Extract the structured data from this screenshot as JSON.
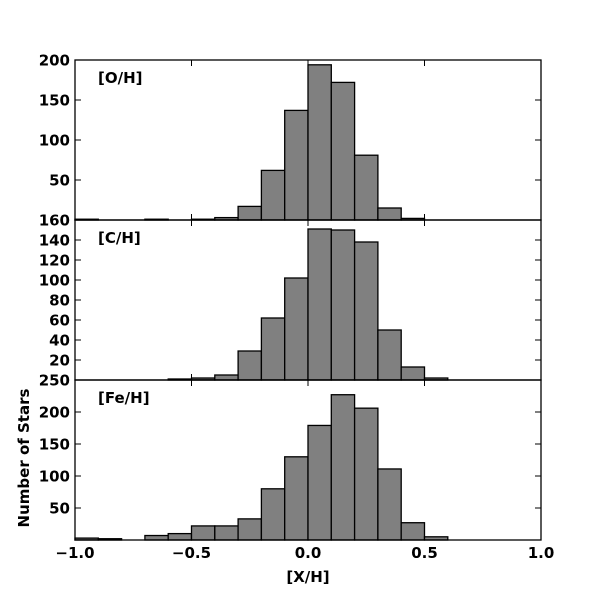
{
  "chart_data": {
    "type": "bar",
    "layout": "three stacked histograms sharing x-axis",
    "xlabel": "[X/H]",
    "ylabel": "Number of Stars",
    "xlim": [
      -1.0,
      1.0
    ],
    "x_ticks": [
      -1.0,
      -0.5,
      0.0,
      0.5,
      1.0
    ],
    "x_tick_labels": [
      "−1.0",
      "−0.5",
      "0.0",
      "0.5",
      "1.0"
    ],
    "bar_color": "#808080",
    "edge_color": "#000000",
    "bin_width": 0.1,
    "panels": [
      {
        "label": "[O/H]",
        "ylim": [
          0,
          200
        ],
        "y_ticks": [
          50,
          100,
          150,
          200
        ],
        "y_tick_labels": [
          "50",
          "100",
          "150",
          "200"
        ],
        "bins": [
          {
            "x0": -1.0,
            "x1": -0.9,
            "value": 1
          },
          {
            "x0": -0.9,
            "x1": -0.8,
            "value": 0
          },
          {
            "x0": -0.8,
            "x1": -0.7,
            "value": 0
          },
          {
            "x0": -0.7,
            "x1": -0.6,
            "value": 1
          },
          {
            "x0": -0.6,
            "x1": -0.5,
            "value": 0
          },
          {
            "x0": -0.5,
            "x1": -0.4,
            "value": 1
          },
          {
            "x0": -0.4,
            "x1": -0.3,
            "value": 3
          },
          {
            "x0": -0.3,
            "x1": -0.2,
            "value": 17
          },
          {
            "x0": -0.2,
            "x1": -0.1,
            "value": 62
          },
          {
            "x0": -0.1,
            "x1": 0.0,
            "value": 137
          },
          {
            "x0": 0.0,
            "x1": 0.1,
            "value": 194
          },
          {
            "x0": 0.1,
            "x1": 0.2,
            "value": 172
          },
          {
            "x0": 0.2,
            "x1": 0.3,
            "value": 81
          },
          {
            "x0": 0.3,
            "x1": 0.4,
            "value": 15
          },
          {
            "x0": 0.4,
            "x1": 0.5,
            "value": 2
          }
        ]
      },
      {
        "label": "[C/H]",
        "ylim": [
          0,
          160
        ],
        "y_ticks": [
          20,
          40,
          60,
          80,
          100,
          120,
          140,
          160
        ],
        "y_tick_labels": [
          "20",
          "40",
          "60",
          "80",
          "100",
          "120",
          "140",
          "160"
        ],
        "bins": [
          {
            "x0": -0.6,
            "x1": -0.5,
            "value": 1
          },
          {
            "x0": -0.5,
            "x1": -0.4,
            "value": 2
          },
          {
            "x0": -0.4,
            "x1": -0.3,
            "value": 5
          },
          {
            "x0": -0.3,
            "x1": -0.2,
            "value": 29
          },
          {
            "x0": -0.2,
            "x1": -0.1,
            "value": 62
          },
          {
            "x0": -0.1,
            "x1": 0.0,
            "value": 102
          },
          {
            "x0": 0.0,
            "x1": 0.1,
            "value": 151
          },
          {
            "x0": 0.1,
            "x1": 0.2,
            "value": 150
          },
          {
            "x0": 0.2,
            "x1": 0.3,
            "value": 138
          },
          {
            "x0": 0.3,
            "x1": 0.4,
            "value": 50
          },
          {
            "x0": 0.4,
            "x1": 0.5,
            "value": 13
          },
          {
            "x0": 0.5,
            "x1": 0.6,
            "value": 2
          }
        ]
      },
      {
        "label": "[Fe/H]",
        "ylim": [
          0,
          250
        ],
        "y_ticks": [
          50,
          100,
          150,
          200,
          250
        ],
        "y_tick_labels": [
          "50",
          "100",
          "150",
          "200",
          "250"
        ],
        "bins": [
          {
            "x0": -1.0,
            "x1": -0.9,
            "value": 3
          },
          {
            "x0": -0.9,
            "x1": -0.8,
            "value": 2
          },
          {
            "x0": -0.8,
            "x1": -0.7,
            "value": 0
          },
          {
            "x0": -0.7,
            "x1": -0.6,
            "value": 7
          },
          {
            "x0": -0.6,
            "x1": -0.5,
            "value": 10
          },
          {
            "x0": -0.5,
            "x1": -0.4,
            "value": 22
          },
          {
            "x0": -0.4,
            "x1": -0.3,
            "value": 22
          },
          {
            "x0": -0.3,
            "x1": -0.2,
            "value": 33
          },
          {
            "x0": -0.2,
            "x1": -0.1,
            "value": 80
          },
          {
            "x0": -0.1,
            "x1": 0.0,
            "value": 130
          },
          {
            "x0": 0.0,
            "x1": 0.1,
            "value": 179
          },
          {
            "x0": 0.1,
            "x1": 0.2,
            "value": 227
          },
          {
            "x0": 0.2,
            "x1": 0.3,
            "value": 206
          },
          {
            "x0": 0.3,
            "x1": 0.4,
            "value": 111
          },
          {
            "x0": 0.4,
            "x1": 0.5,
            "value": 27
          },
          {
            "x0": 0.5,
            "x1": 0.6,
            "value": 5
          }
        ]
      }
    ]
  }
}
